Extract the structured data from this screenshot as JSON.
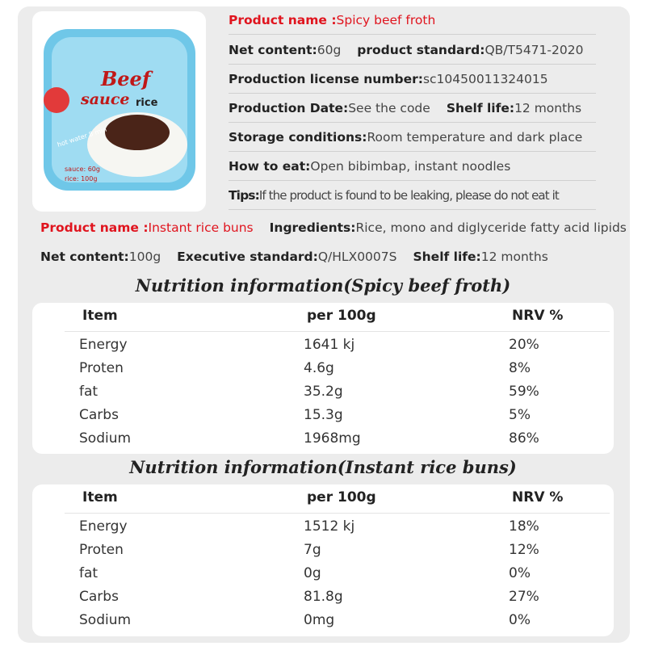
{
  "package": {
    "brand": "Beef",
    "sub": "sauce",
    "word": "rice",
    "cook": "hot water 8 min",
    "sauce_weight": "sauce: 60g",
    "rice_weight": "rice: 100g"
  },
  "product1": {
    "lines": [
      [
        {
          "label": "Product name :",
          "value": "Spicy beef froth"
        }
      ],
      [
        {
          "label": "Net content:",
          "value": "60g"
        },
        {
          "label": "product standard:",
          "value": "QB/T5471-2020"
        }
      ],
      [
        {
          "label": "Production license number:",
          "value": "sc10450011324015"
        }
      ],
      [
        {
          "label": "Production Date:",
          "value": "See the code"
        },
        {
          "label": "Shelf life:",
          "value": "12 months"
        }
      ],
      [
        {
          "label": "Storage conditions:",
          "value": "Room temperature and dark place"
        }
      ],
      [
        {
          "label": "How to eat:",
          "value": "Open bibimbap, instant noodles"
        }
      ],
      [
        {
          "label": "Tips:",
          "value": "If the product is found to be leaking, please do not eat it"
        }
      ]
    ]
  },
  "product2": {
    "lines": [
      [
        {
          "label": "Product name :",
          "value": "Instant rice buns"
        },
        {
          "label": "Ingredients:",
          "value": "Rice, mono and diglyceride fatty acid lipids"
        }
      ],
      [
        {
          "label": "Net content:",
          "value": "100g"
        },
        {
          "label": "Executive standard:",
          "value": "Q/HLX0007S"
        },
        {
          "label": "Shelf life:",
          "value": "12 months"
        }
      ]
    ]
  },
  "tables": [
    {
      "title": "Nutrition information(Spicy beef froth)",
      "header": [
        "Item",
        "per 100g",
        "NRV %"
      ],
      "rows": [
        [
          "Energy",
          "1641 kj",
          "20%"
        ],
        [
          "Proten",
          "4.6g",
          "8%"
        ],
        [
          "fat",
          "35.2g",
          "59%"
        ],
        [
          "Carbs",
          "15.3g",
          "5%"
        ],
        [
          "Sodium",
          "1968mg",
          "86%"
        ]
      ]
    },
    {
      "title": "Nutrition information(Instant rice buns)",
      "header": [
        "Item",
        "per 100g",
        "NRV %"
      ],
      "rows": [
        [
          "Energy",
          "1512 kj",
          "18%"
        ],
        [
          "Proten",
          "7g",
          "12%"
        ],
        [
          "fat",
          "0g",
          "0%"
        ],
        [
          "Carbs",
          "81.8g",
          "27%"
        ],
        [
          "Sodium",
          "0mg",
          "0%"
        ]
      ]
    }
  ]
}
